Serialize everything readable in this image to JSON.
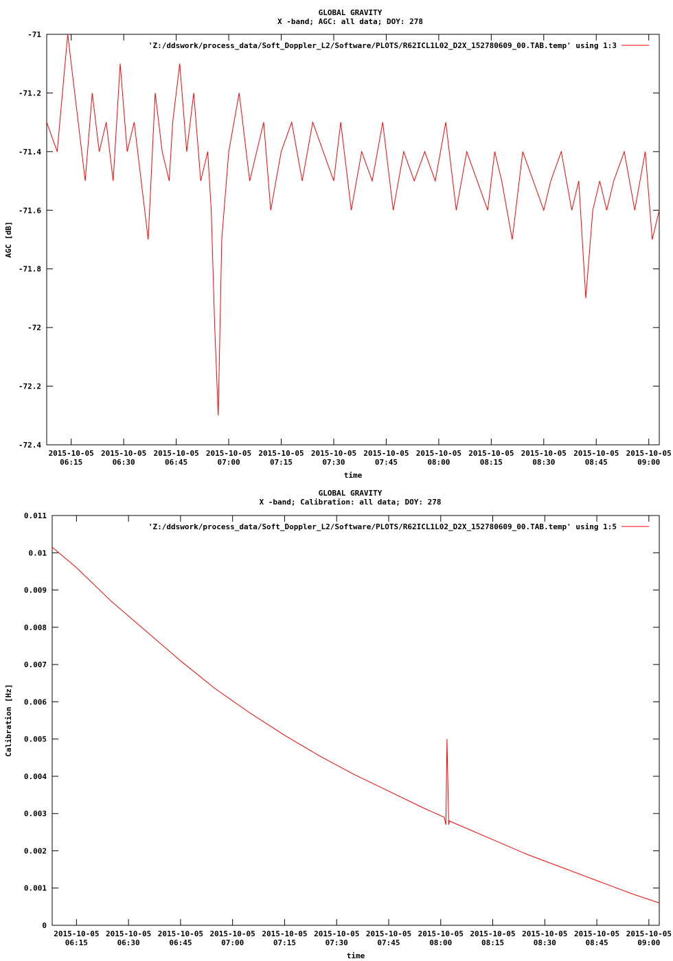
{
  "chart_data": [
    {
      "type": "line",
      "title": "GLOBAL GRAVITY",
      "subtitle": "X -band; AGC: all data; DOY: 278",
      "xlabel": "time",
      "ylabel": "AGC [dB]",
      "ylim": [
        -72.4,
        -71.0
      ],
      "yticks": [
        -71,
        -71.2,
        -71.4,
        -71.6,
        -71.8,
        -72,
        -72.2,
        -72.4
      ],
      "ytick_labels": [
        "-71",
        "-71.2",
        "-71.4",
        "-71.6",
        "-71.8",
        "-72",
        "-72.2",
        "-72.4"
      ],
      "xlim_minutes": [
        368,
        543
      ],
      "xticks_minutes": [
        375,
        390,
        405,
        420,
        435,
        450,
        465,
        480,
        495,
        510,
        525,
        540
      ],
      "xtick_dates": [
        "2015-10-05",
        "2015-10-05",
        "2015-10-05",
        "2015-10-05",
        "2015-10-05",
        "2015-10-05",
        "2015-10-05",
        "2015-10-05",
        "2015-10-05",
        "2015-10-05",
        "2015-10-05",
        "2015-10-05"
      ],
      "xtick_times": [
        "06:15",
        "06:30",
        "06:45",
        "07:00",
        "07:15",
        "07:30",
        "07:45",
        "08:00",
        "08:15",
        "08:30",
        "08:45",
        "09:00"
      ],
      "grid": false,
      "legend_position": "top-right",
      "series": [
        {
          "name": "'Z:/ddswork/process_data/Soft_Doppler_L2/Software/PLOTS/R62ICL1L02_D2X_152780609_00.TAB.temp' using 1:3",
          "color": "#ff0000",
          "x_minutes": [
            368,
            371,
            374,
            377,
            379,
            381,
            383,
            385,
            387,
            389,
            391,
            393,
            395,
            397,
            399,
            401,
            403,
            404,
            406,
            408,
            410,
            412,
            414,
            415,
            416,
            417,
            418,
            420,
            423,
            426,
            430,
            432,
            435,
            438,
            441,
            444,
            447,
            450,
            452,
            455,
            458,
            461,
            464,
            467,
            470,
            473,
            476,
            479,
            482,
            485,
            488,
            491,
            494,
            496,
            498,
            501,
            504,
            507,
            510,
            512,
            515,
            518,
            520,
            522,
            524,
            526,
            528,
            530,
            533,
            536,
            539,
            541,
            543
          ],
          "values": [
            -71.3,
            -71.4,
            -71.0,
            -71.3,
            -71.5,
            -71.2,
            -71.4,
            -71.3,
            -71.5,
            -71.1,
            -71.4,
            -71.3,
            -71.5,
            -71.7,
            -71.2,
            -71.4,
            -71.5,
            -71.3,
            -71.1,
            -71.4,
            -71.2,
            -71.5,
            -71.4,
            -71.6,
            -72.0,
            -72.3,
            -71.7,
            -71.4,
            -71.2,
            -71.5,
            -71.3,
            -71.6,
            -71.4,
            -71.3,
            -71.5,
            -71.3,
            -71.4,
            -71.5,
            -71.3,
            -71.6,
            -71.4,
            -71.5,
            -71.3,
            -71.6,
            -71.4,
            -71.5,
            -71.4,
            -71.5,
            -71.3,
            -71.6,
            -71.4,
            -71.5,
            -71.6,
            -71.4,
            -71.5,
            -71.7,
            -71.4,
            -71.5,
            -71.6,
            -71.5,
            -71.4,
            -71.6,
            -71.5,
            -71.9,
            -71.6,
            -71.5,
            -71.6,
            -71.5,
            -71.4,
            -71.6,
            -71.4,
            -71.7,
            -71.6
          ]
        }
      ]
    },
    {
      "type": "line",
      "title": "GLOBAL GRAVITY",
      "subtitle": "X -band; Calibration: all data; DOY: 278",
      "xlabel": "time",
      "ylabel": "Calibration [Hz]",
      "ylim": [
        0,
        0.011
      ],
      "yticks": [
        0,
        0.001,
        0.002,
        0.003,
        0.004,
        0.005,
        0.006,
        0.007,
        0.008,
        0.009,
        0.01,
        0.011
      ],
      "ytick_labels": [
        "0",
        "0.001",
        "0.002",
        "0.003",
        "0.004",
        "0.005",
        "0.006",
        "0.007",
        "0.008",
        "0.009",
        "0.01",
        "0.011"
      ],
      "xlim_minutes": [
        368,
        543
      ],
      "xticks_minutes": [
        375,
        390,
        405,
        420,
        435,
        450,
        465,
        480,
        495,
        510,
        525,
        540
      ],
      "xtick_dates": [
        "2015-10-05",
        "2015-10-05",
        "2015-10-05",
        "2015-10-05",
        "2015-10-05",
        "2015-10-05",
        "2015-10-05",
        "2015-10-05",
        "2015-10-05",
        "2015-10-05",
        "2015-10-05",
        "2015-10-05"
      ],
      "xtick_times": [
        "06:15",
        "06:30",
        "06:45",
        "07:00",
        "07:15",
        "07:30",
        "07:45",
        "08:00",
        "08:15",
        "08:30",
        "08:45",
        "09:00"
      ],
      "grid": false,
      "legend_position": "top-right",
      "series": [
        {
          "name": "'Z:/ddswork/process_data/Soft_Doppler_L2/Software/PLOTS/R62ICL1L02_D2X_152780609_00.TAB.temp' using 1:5",
          "color": "#ff0000",
          "x_minutes": [
            368,
            375,
            385,
            395,
            405,
            415,
            425,
            435,
            445,
            455,
            465,
            475,
            481,
            481.5,
            481.8,
            482.3,
            482.5,
            485,
            495,
            505,
            515,
            525,
            535,
            543
          ],
          "values": [
            0.01015,
            0.0096,
            0.0087,
            0.0079,
            0.0071,
            0.00635,
            0.0057,
            0.0051,
            0.00455,
            0.00405,
            0.0036,
            0.00315,
            0.0029,
            0.0027,
            0.005,
            0.0027,
            0.0028,
            0.0027,
            0.0023,
            0.0019,
            0.00155,
            0.0012,
            0.00085,
            0.0006
          ]
        }
      ]
    }
  ]
}
